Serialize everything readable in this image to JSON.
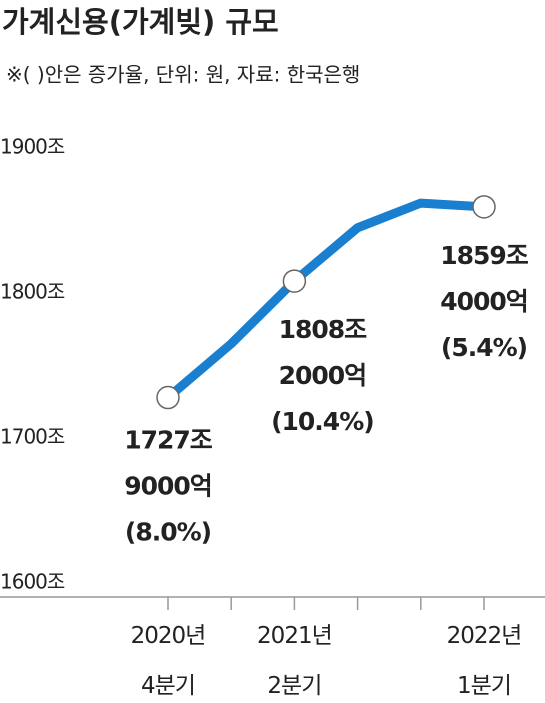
{
  "chart_data": {
    "type": "line",
    "title": "가계신용(가계빚) 규모",
    "subtitle": "※( )안은 증가율, 단위: 원, 자료: 한국은행",
    "categories": [
      "2020년\n4분기",
      null,
      "2021년\n2분기",
      null,
      null,
      "2022년\n1분기"
    ],
    "values": [
      1727.9,
      1765,
      1808.2,
      1845,
      1862,
      1859.4
    ],
    "value_labels": [
      "1727조\n9000억\n(8.0%)",
      null,
      "1808조\n2000억\n(10.4%)",
      null,
      null,
      "1859조\n4000억\n(5.4%)"
    ],
    "color": "#1a7fcf",
    "ylim": [
      1600,
      1900
    ],
    "yticks": [
      {
        "value": 1600,
        "label": "1600조"
      },
      {
        "value": 1700,
        "label": "1700조"
      },
      {
        "value": 1800,
        "label": "1800조"
      },
      {
        "value": 1900,
        "label": "1900조"
      }
    ],
    "grid": false
  }
}
